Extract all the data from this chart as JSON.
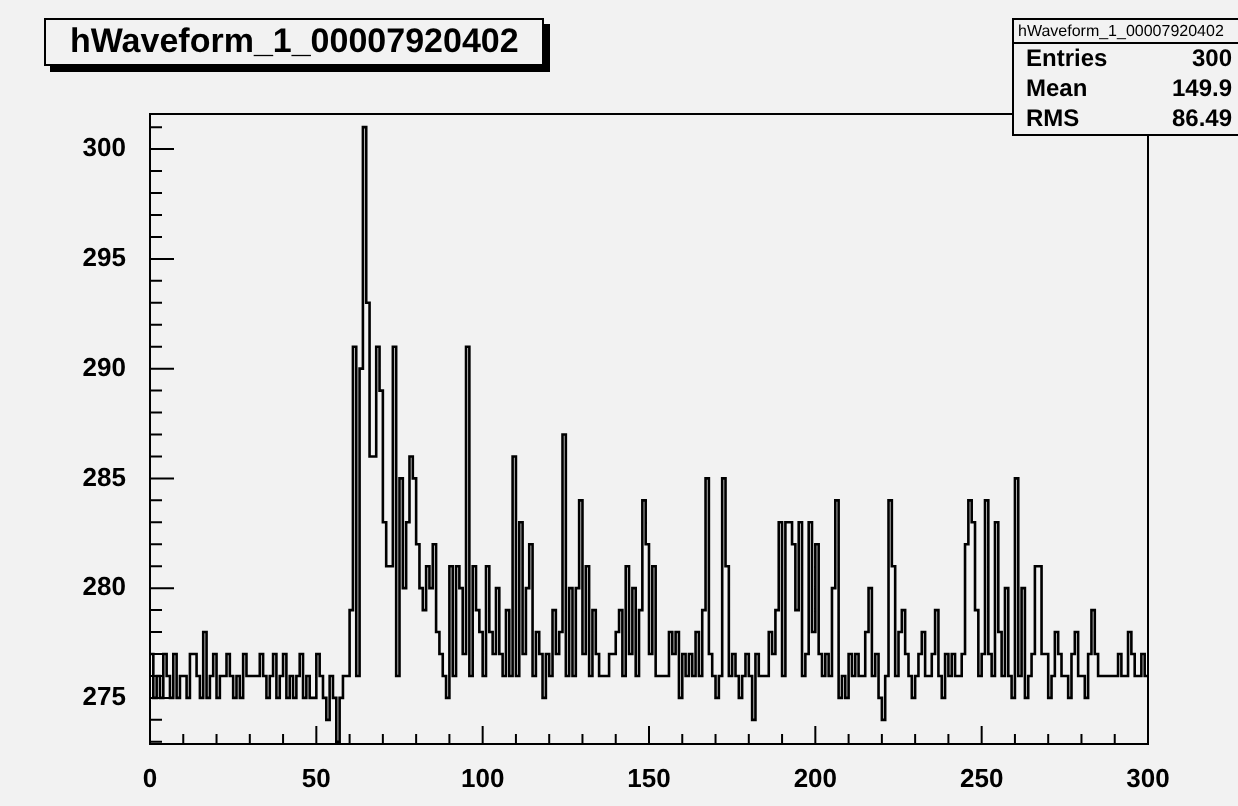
{
  "chart_data": {
    "type": "histogram",
    "title": "hWaveform_1_00007920402",
    "annotations": [
      "hWaveform_1_00007920402",
      "Entries",
      "300",
      "Mean",
      "149.9",
      "RMS",
      "86.49"
    ],
    "color": "#000000",
    "bins": [
      0,
      1,
      2,
      3,
      4,
      5,
      6,
      7,
      8,
      9,
      10,
      11,
      12,
      13,
      14,
      15,
      16,
      17,
      18,
      19,
      20,
      21,
      22,
      23,
      24,
      25,
      26,
      27,
      28,
      29,
      30,
      31,
      32,
      33,
      34,
      35,
      36,
      37,
      38,
      39,
      40,
      41,
      42,
      43,
      44,
      45,
      46,
      47,
      48,
      49,
      50,
      51,
      52,
      53,
      54,
      55,
      56,
      57,
      58,
      59,
      60,
      61,
      62,
      63,
      64,
      65,
      66,
      67,
      68,
      69,
      70,
      71,
      72,
      73,
      74,
      75,
      76,
      77,
      78,
      79,
      80,
      81,
      82,
      83,
      84,
      85,
      86,
      87,
      88,
      89,
      90,
      91,
      92,
      93,
      94,
      95,
      96,
      97,
      98,
      99,
      100,
      101,
      102,
      103,
      104,
      105,
      106,
      107,
      108,
      109,
      110,
      111,
      112,
      113,
      114,
      115,
      116,
      117,
      118,
      119,
      120,
      121,
      122,
      123,
      124,
      125,
      126,
      127,
      128,
      129,
      130,
      131,
      132,
      133,
      134,
      135,
      136,
      137,
      138,
      139,
      140,
      141,
      142,
      143,
      144,
      145,
      146,
      147,
      148,
      149,
      150,
      151,
      152,
      153,
      154,
      155,
      156,
      157,
      158,
      159,
      160,
      161,
      162,
      163,
      164,
      165,
      166,
      167,
      168,
      169,
      170,
      171,
      172,
      173,
      174,
      175,
      176,
      177,
      178,
      179,
      180,
      181,
      182,
      183,
      184,
      185,
      186,
      187,
      188,
      189,
      190,
      191,
      192,
      193,
      194,
      195,
      196,
      197,
      198,
      199,
      200,
      201,
      202,
      203,
      204,
      205,
      206,
      207,
      208,
      209,
      210,
      211,
      212,
      213,
      214,
      215,
      216,
      217,
      218,
      219,
      220,
      221,
      222,
      223,
      224,
      225,
      226,
      227,
      228,
      229,
      230,
      231,
      232,
      233,
      234,
      235,
      236,
      237,
      238,
      239,
      240,
      241,
      242,
      243,
      244,
      245,
      246,
      247,
      248,
      249,
      250,
      251,
      252,
      253,
      254,
      255,
      256,
      257,
      258,
      259,
      260,
      261,
      262,
      263,
      264,
      265,
      266,
      267,
      268,
      269,
      270,
      271,
      272,
      273,
      274,
      275,
      276,
      277,
      278,
      279,
      280,
      281,
      282,
      283,
      284,
      285,
      286,
      287,
      288,
      289,
      290,
      291,
      292,
      293,
      294,
      295,
      296,
      297,
      298,
      299,
      300
    ],
    "values": [
      277,
      275,
      276,
      275,
      277,
      276,
      275,
      277,
      275,
      276,
      276,
      275,
      277,
      277,
      276,
      275,
      278,
      275,
      276,
      277,
      275,
      276,
      276,
      277,
      276,
      275,
      276,
      275,
      277,
      276,
      276,
      276,
      276,
      277,
      276,
      275,
      276,
      277,
      275,
      276,
      277,
      275,
      276,
      275,
      276,
      277,
      275,
      276,
      275,
      275,
      277,
      276,
      275,
      274,
      276,
      275,
      273,
      275,
      276,
      276,
      279,
      291,
      276,
      290,
      301,
      293,
      286,
      286,
      291,
      289,
      283,
      281,
      281,
      291,
      276,
      285,
      280,
      283,
      286,
      285,
      282,
      280,
      279,
      281,
      280,
      282,
      278,
      277,
      276,
      275,
      281,
      276,
      281,
      280,
      277,
      291,
      276,
      281,
      279,
      278,
      276,
      281,
      278,
      277,
      280,
      277,
      276,
      279,
      276,
      286,
      276,
      283,
      277,
      280,
      282,
      276,
      278,
      277,
      275,
      277,
      276,
      279,
      277,
      278,
      287,
      276,
      280,
      276,
      280,
      284,
      277,
      281,
      276,
      279,
      277,
      276,
      276,
      276,
      277,
      277,
      278,
      279,
      276,
      281,
      277,
      280,
      276,
      279,
      284,
      282,
      277,
      281,
      276,
      276,
      276,
      276,
      278,
      277,
      278,
      275,
      277,
      276,
      277,
      276,
      278,
      276,
      279,
      285,
      277,
      276,
      275,
      276,
      285,
      281,
      276,
      277,
      276,
      275,
      276,
      277,
      276,
      274,
      277,
      276,
      276,
      276,
      278,
      277,
      279,
      283,
      276,
      283,
      283,
      282,
      279,
      283,
      276,
      277,
      283,
      278,
      282,
      277,
      276,
      277,
      276,
      280,
      284,
      275,
      276,
      275,
      277,
      276,
      277,
      276,
      276,
      278,
      280,
      276,
      277,
      275,
      274,
      276,
      284,
      281,
      276,
      278,
      279,
      277,
      276,
      275,
      276,
      277,
      278,
      276,
      276,
      277,
      279,
      276,
      275,
      277,
      276,
      277,
      276,
      276,
      277,
      282,
      284,
      283,
      279,
      276,
      277,
      284,
      277,
      276,
      283,
      278,
      276,
      280,
      276,
      275,
      285,
      276,
      280,
      275,
      276,
      277,
      281,
      281,
      277,
      277,
      275,
      276,
      278,
      277,
      276,
      276,
      275,
      277,
      278,
      276,
      276,
      275,
      277,
      279,
      277,
      276,
      276,
      276,
      276,
      276,
      276,
      277,
      276,
      276,
      278,
      277,
      276,
      276,
      277,
      276
    ],
    "xlim": [
      0,
      300
    ],
    "ylim": [
      272.9,
      301.6
    ],
    "xticks": [
      0,
      50,
      100,
      150,
      200,
      250,
      300
    ],
    "yticks": [
      275,
      280,
      285,
      290,
      295,
      300
    ]
  }
}
